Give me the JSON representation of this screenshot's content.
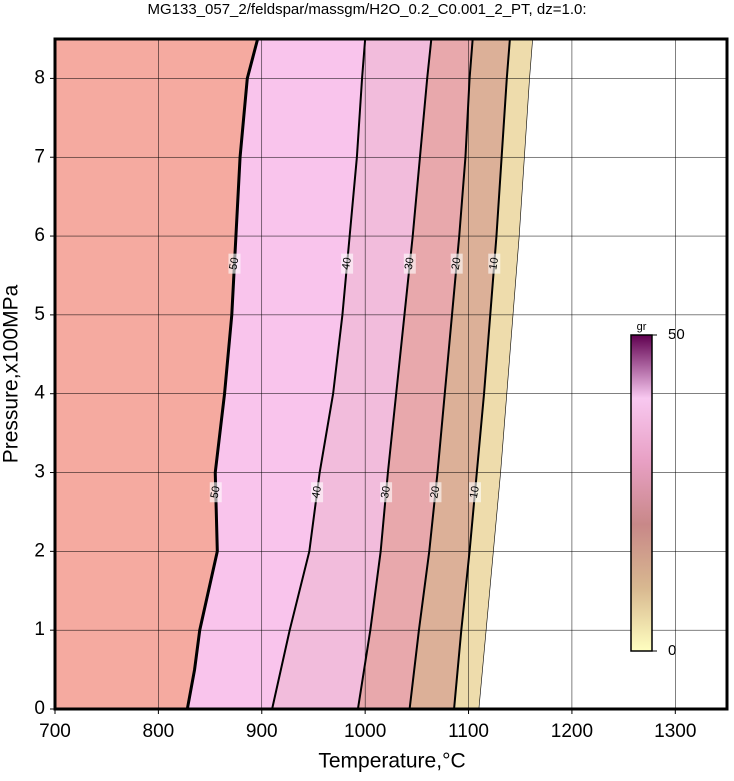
{
  "chart_data": {
    "type": "contour",
    "title": "MG133_057_2/feldspar/massgm/H2O_0.2_C0.001_2_PT, dz=1.0:",
    "x_label": "Temperature,°C",
    "y_label": "Pressure,x100MPa",
    "xlim": [
      700,
      1350
    ],
    "ylim": [
      0,
      8.5
    ],
    "xticks": [
      700,
      800,
      900,
      1000,
      1100,
      1200,
      1300
    ],
    "yticks": [
      0,
      1,
      2,
      3,
      4,
      5,
      6,
      7,
      8
    ],
    "grid": true,
    "left_color": "#f5aaa0",
    "contours": [
      {
        "level": 50,
        "fill": "#f9c4ec",
        "x": [
          828,
          835,
          840,
          857,
          855,
          864,
          871,
          875,
          879,
          886,
          896
        ],
        "y": [
          0,
          0.5,
          1,
          2,
          3,
          4,
          5,
          6,
          7,
          8,
          8.5
        ]
      },
      {
        "level": 40,
        "fill": "#f2bcdc",
        "x": [
          910,
          927,
          946,
          956,
          969,
          978,
          985,
          992,
          997,
          1000
        ],
        "y": [
          0,
          1,
          2,
          3,
          4,
          5,
          6,
          7,
          8,
          8.5
        ]
      },
      {
        "level": 30,
        "fill": "#e8a8ac",
        "x": [
          993,
          1005,
          1015,
          1022,
          1030,
          1038,
          1046,
          1053,
          1060,
          1064
        ],
        "y": [
          0,
          1,
          2,
          3,
          4,
          5,
          6,
          7,
          8,
          8.5
        ]
      },
      {
        "level": 20,
        "fill": "#dcb098",
        "x": [
          1043,
          1052,
          1062,
          1070,
          1077,
          1084,
          1091,
          1097,
          1101,
          1104
        ],
        "y": [
          0,
          1,
          2,
          3,
          4,
          5,
          6,
          7,
          8,
          8.5
        ]
      },
      {
        "level": 10,
        "fill": "#eedcac",
        "x": [
          1086,
          1093,
          1101,
          1108,
          1115,
          1121,
          1127,
          1132,
          1137,
          1140
        ],
        "y": [
          0,
          1,
          2,
          3,
          4,
          5,
          6,
          7,
          8,
          8.5
        ]
      },
      {
        "level": 0,
        "fill": "#ffffff",
        "x": [
          1110,
          1117,
          1124,
          1131,
          1137,
          1143,
          1149,
          1154,
          1159,
          1162
        ],
        "y": [
          0,
          1,
          2,
          3,
          4,
          5,
          6,
          7,
          8,
          8.5
        ]
      }
    ],
    "colorbar": {
      "label": "gr",
      "clim": [
        0,
        50
      ],
      "ticks": [
        0,
        50
      ],
      "colors": [
        "#ffffc0",
        "#d8b890",
        "#c88888",
        "#e8a0c4",
        "#f8c8f0",
        "#600050"
      ]
    }
  }
}
